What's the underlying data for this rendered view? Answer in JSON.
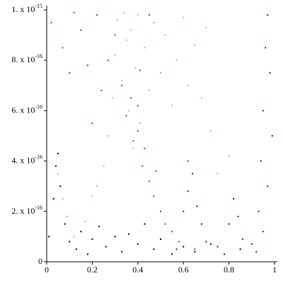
{
  "chart_data": {
    "type": "scatter",
    "xlim": [
      0,
      1
    ],
    "ylim": [
      0,
      1e-15
    ],
    "xticks": [
      0,
      0.2,
      0.4,
      0.6,
      0.8,
      1
    ],
    "yticks": [
      0,
      {
        "value": 2e-16,
        "label": "2. x 10",
        "sup": "-16"
      },
      {
        "value": 4e-16,
        "label": "4. x 10",
        "sup": "-16"
      },
      {
        "value": 6e-16,
        "label": "6. x 10",
        "sup": "-16"
      },
      {
        "value": 8e-16,
        "label": "8. x 10",
        "sup": "-16"
      },
      {
        "value": 1e-15,
        "label": "1. x 10",
        "sup": "-15"
      }
    ],
    "series": [
      {
        "color": "#6fdc9a",
        "x": [
          0.05,
          0.07,
          0.09,
          0.12,
          0.17,
          0.2,
          0.22,
          0.25,
          0.27,
          0.29,
          0.3,
          0.31,
          0.33,
          0.34,
          0.35,
          0.36,
          0.37,
          0.38,
          0.39,
          0.4,
          0.41,
          0.43,
          0.45,
          0.47,
          0.5,
          0.52,
          0.55,
          0.57,
          0.6,
          0.62,
          0.65,
          0.68,
          0.7,
          0.72,
          0.75,
          0.8
        ],
        "values": [
          3.5e-16,
          2.5e-16,
          1.8e-16,
          1e-16,
          1.6e-16,
          2.6e-16,
          3e-16,
          3.8e-16,
          5e-16,
          6.5e-16,
          8.2e-16,
          9.6e-16,
          7.2e-16,
          9.9e-16,
          8.8e-16,
          6e-16,
          9.2e-16,
          4.5e-16,
          7.7e-16,
          9.8e-16,
          5.5e-16,
          8.5e-16,
          6.8e-16,
          9.5e-16,
          7.5e-16,
          9e-16,
          6.2e-16,
          8e-16,
          9.7e-16,
          7e-16,
          8.6e-16,
          6.5e-16,
          9.3e-16,
          5.2e-16,
          3.5e-16,
          4.2e-16
        ]
      },
      {
        "color": "#e8190f",
        "x": [
          0.02,
          0.07,
          0.1,
          0.12,
          0.15,
          0.18,
          0.2,
          0.22,
          0.24,
          0.27,
          0.3,
          0.33,
          0.35,
          0.37,
          0.38,
          0.4,
          0.41,
          0.42,
          0.43,
          0.45,
          0.47,
          0.48,
          0.5,
          0.52,
          0.55,
          0.58,
          0.62,
          0.65,
          0.45,
          0.4
        ],
        "values": [
          9.5e-16,
          8.5e-16,
          7.5e-16,
          9.9e-16,
          9.2e-16,
          7.8e-16,
          5.5e-16,
          9.8e-16,
          6.8e-16,
          8e-16,
          9e-16,
          7e-16,
          5.8e-16,
          6.5e-16,
          4.8e-16,
          5.2e-16,
          7.6e-16,
          3.8e-16,
          4.5e-16,
          3.2e-16,
          2.6e-16,
          3.6e-16,
          2e-16,
          1.5e-16,
          1.2e-16,
          8e-17,
          4e-16,
          5e-17,
          9.8e-16,
          6.2e-16
        ]
      },
      {
        "color": "#8b0000",
        "x": [
          0.57,
          0.6,
          0.62,
          0.64,
          0.66,
          0.68,
          0.7,
          0.75,
          0.8,
          0.82,
          0.84,
          0.86,
          0.9,
          0.93,
          0.94,
          0.95,
          0.96,
          0.97,
          0.98,
          0.99,
          0.97,
          0.95,
          0.92
        ],
        "values": [
          5e-17,
          2e-16,
          2.8e-16,
          3.5e-16,
          2.2e-16,
          1.5e-16,
          8e-17,
          6e-17,
          1.5e-16,
          2.5e-16,
          1.8e-16,
          9e-17,
          7e-17,
          2e-16,
          4e-16,
          6e-16,
          8.5e-16,
          9.8e-16,
          7.5e-16,
          5e-16,
          3e-16,
          1.2e-16,
          4e-17
        ]
      },
      {
        "color": "#000000",
        "x": [
          0.01,
          0.03,
          0.04,
          0.05,
          0.06,
          0.08,
          0.1,
          0.13,
          0.15,
          0.18,
          0.2,
          0.23,
          0.26,
          0.3,
          0.33,
          0.36,
          0.4,
          0.43,
          0.47,
          0.5,
          0.55,
          0.6,
          0.65,
          0.72,
          0.78,
          0.85
        ],
        "values": [
          1e-16,
          2.5e-16,
          3.8e-16,
          4.3e-16,
          3e-16,
          1.5e-16,
          8e-17,
          5e-17,
          1.2e-16,
          3e-17,
          9e-17,
          1.4e-16,
          6e-17,
          1e-16,
          4e-17,
          1.1e-16,
          7e-17,
          1.5e-16,
          5e-17,
          9e-17,
          3e-17,
          6e-17,
          4e-17,
          7e-17,
          3e-17,
          5e-17
        ]
      }
    ]
  }
}
